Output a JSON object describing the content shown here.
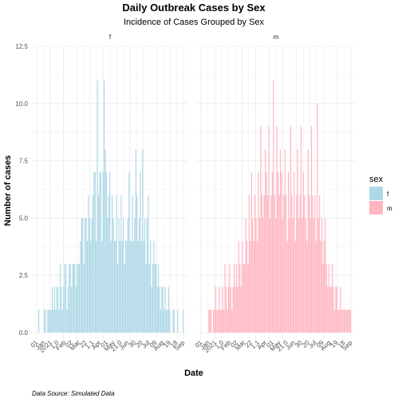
{
  "chart_data": {
    "type": "bar",
    "title": "Daily Outbreak Cases by Sex",
    "subtitle": "Incidence of Cases Grouped by Sex",
    "xlabel": "Date",
    "ylabel": "Number of cases",
    "caption": "Data Source: Simulated Data",
    "ylim": [
      0,
      12.5
    ],
    "y_ticks": [
      "0.0",
      "2.5",
      "5.0",
      "7.5",
      "10.0",
      "12.5"
    ],
    "x_tick_labels": [
      "01",
      "Jan",
      "2023",
      "Jan",
      "10",
      "Feb",
      "22",
      "Feb",
      "Mar",
      "22",
      "Apr",
      "11",
      "Apr",
      "May",
      "11",
      "May",
      "Jun",
      "01",
      "20",
      "Jun",
      "09",
      "Jul",
      "29",
      "Aug",
      "18",
      "Sep"
    ],
    "x_tick_display": [
      "01",
      "Jan",
      "2021",
      "1.0",
      "Feb",
      "02",
      "Mar",
      "22",
      "1.1",
      "Apr",
      "01",
      "May",
      "21.0",
      "Jun",
      "30",
      "20",
      "Jul",
      "09",
      "Aug",
      "19",
      "18",
      "Sep"
    ],
    "legend": {
      "title": "sex",
      "position": "right",
      "entries": [
        "f",
        "m"
      ]
    },
    "colors": {
      "f": "#add8e6",
      "m": "#ffb6c1"
    },
    "series": [
      {
        "name": "f",
        "values": [
          1,
          0,
          0,
          0,
          0,
          1,
          1,
          0,
          1,
          1,
          1,
          1,
          2,
          1,
          2,
          1,
          2,
          2,
          1,
          3,
          2,
          1,
          2,
          3,
          3,
          1,
          2,
          3,
          3,
          2,
          3,
          3,
          3,
          2,
          3,
          3,
          3,
          4,
          5,
          5,
          3,
          5,
          5,
          4,
          6,
          5,
          4,
          5,
          6,
          7,
          7,
          4,
          11,
          6,
          7,
          7,
          4,
          7,
          11,
          8,
          7,
          5,
          6,
          7,
          4,
          6,
          5,
          4,
          4,
          6,
          3,
          5,
          4,
          6,
          4,
          5,
          3,
          4,
          4,
          5,
          7,
          4,
          4,
          6,
          4,
          5,
          8,
          6,
          4,
          5,
          7,
          4,
          8,
          4,
          5,
          3,
          5,
          6,
          3,
          4,
          2,
          3,
          4,
          3,
          3,
          2,
          3,
          2,
          1,
          2,
          2,
          1,
          2,
          1,
          1,
          2,
          1,
          0,
          0,
          1,
          1,
          0,
          0,
          1,
          0,
          0,
          0,
          0,
          1,
          0
        ]
      },
      {
        "name": "m",
        "values": [
          0,
          0,
          0,
          0,
          0,
          1,
          1,
          1,
          0,
          1,
          1,
          2,
          1,
          1,
          2,
          1,
          1,
          2,
          1,
          3,
          2,
          1,
          2,
          3,
          2,
          1,
          2,
          3,
          2,
          3,
          2,
          4,
          3,
          2,
          4,
          3,
          3,
          5,
          4,
          3,
          6,
          4,
          7,
          5,
          4,
          6,
          5,
          4,
          7,
          5,
          9,
          6,
          5,
          6,
          8,
          7,
          6,
          9,
          5,
          6,
          7,
          11,
          6,
          5,
          9,
          7,
          6,
          8,
          7,
          5,
          6,
          8,
          6,
          4,
          7,
          5,
          9,
          6,
          5,
          7,
          4,
          6,
          8,
          5,
          6,
          9,
          5,
          7,
          6,
          5,
          4,
          8,
          6,
          5,
          9,
          6,
          5,
          6,
          4,
          10,
          5,
          6,
          4,
          5,
          3,
          4,
          5,
          3,
          2,
          3,
          2,
          2,
          3,
          2,
          1,
          2,
          2,
          1,
          1,
          2,
          1,
          1,
          1,
          1,
          1,
          1,
          1,
          1,
          1,
          0
        ]
      }
    ]
  }
}
